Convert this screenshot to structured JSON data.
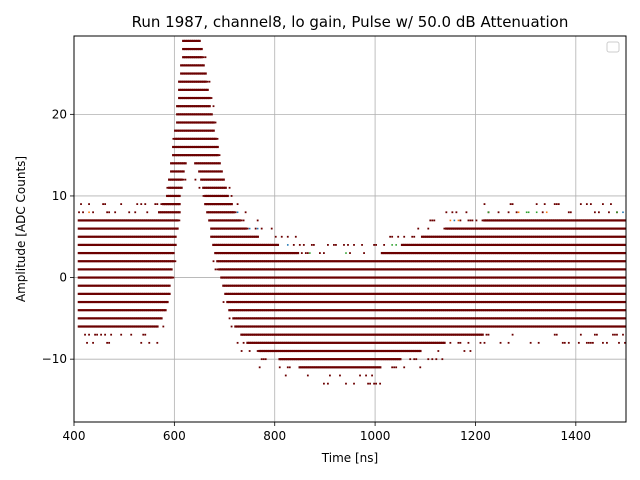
{
  "chart_data": {
    "type": "scatter",
    "title": "Run 1987, channel8, lo gain, Pulse w/ 50.0 dB Attenuation",
    "xlabel": "Time [ns]",
    "ylabel": "Amplitude [ADC Counts]",
    "xlim": [
      400,
      1500
    ],
    "ylim": [
      -17.7,
      29.6
    ],
    "xticks": [
      400,
      600,
      800,
      1000,
      1200,
      1400
    ],
    "yticks": [
      -10,
      0,
      10,
      20
    ],
    "ytick_labels": [
      "−10",
      "0",
      "10",
      "20"
    ],
    "grid": true,
    "legend": {
      "placement": "top-right",
      "entries": []
    },
    "series_color": "#6b0000",
    "outlier_colors": [
      "#1f77b4",
      "#ff7f0e",
      "#2ca02c"
    ],
    "adc_step": 1.0,
    "baseline_band": {
      "lo": -6.5,
      "hi": 7.5
    },
    "pulse": {
      "peak_time": 630,
      "peak_amplitude": 27.3,
      "rise_sigma": 22,
      "fall_sigma": 40,
      "sample_start": 410,
      "sample_end": 1500,
      "sample_step": 4
    },
    "undershoot": {
      "center_time": 930,
      "sigma": 130,
      "depth": 5.5
    }
  }
}
